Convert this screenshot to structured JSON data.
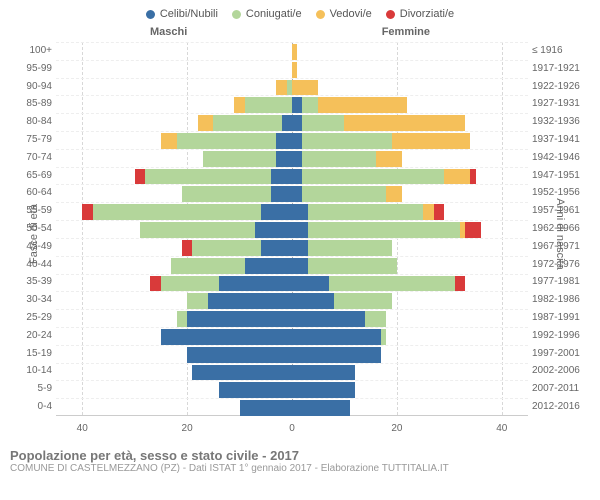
{
  "legend": [
    {
      "label": "Celibi/Nubili",
      "color": "#3a6fa5"
    },
    {
      "label": "Coniugati/e",
      "color": "#b3d69b"
    },
    {
      "label": "Vedovi/e",
      "color": "#f5c05a"
    },
    {
      "label": "Divorziati/e",
      "color": "#d93a3a"
    }
  ],
  "header": {
    "male": "Maschi",
    "female": "Femmine"
  },
  "axis": {
    "left_title": "Fasce di età",
    "right_title": "Anni di nascita",
    "xmax": 45,
    "xticks_left": [
      40,
      20,
      0
    ],
    "xticks_right": [
      0,
      20,
      40
    ]
  },
  "colors": {
    "celibi": "#3a6fa5",
    "coniugati": "#b3d69b",
    "vedovi": "#f5c05a",
    "divorziati": "#d93a3a",
    "grid": "#d8d8d8",
    "center": "#b0b0b0"
  },
  "rows": [
    {
      "age": "100+",
      "birth": "≤ 1916",
      "m": {
        "c": 0,
        "co": 0,
        "v": 0,
        "d": 0
      },
      "f": {
        "c": 0,
        "co": 0,
        "v": 1,
        "d": 0
      }
    },
    {
      "age": "95-99",
      "birth": "1917-1921",
      "m": {
        "c": 0,
        "co": 0,
        "v": 0,
        "d": 0
      },
      "f": {
        "c": 0,
        "co": 0,
        "v": 1,
        "d": 0
      }
    },
    {
      "age": "90-94",
      "birth": "1922-1926",
      "m": {
        "c": 0,
        "co": 1,
        "v": 2,
        "d": 0
      },
      "f": {
        "c": 0,
        "co": 0,
        "v": 5,
        "d": 0
      }
    },
    {
      "age": "85-89",
      "birth": "1927-1931",
      "m": {
        "c": 0,
        "co": 9,
        "v": 2,
        "d": 0
      },
      "f": {
        "c": 2,
        "co": 3,
        "v": 17,
        "d": 0
      }
    },
    {
      "age": "80-84",
      "birth": "1932-1936",
      "m": {
        "c": 2,
        "co": 13,
        "v": 3,
        "d": 0
      },
      "f": {
        "c": 2,
        "co": 8,
        "v": 23,
        "d": 0
      }
    },
    {
      "age": "75-79",
      "birth": "1937-1941",
      "m": {
        "c": 3,
        "co": 19,
        "v": 3,
        "d": 0
      },
      "f": {
        "c": 2,
        "co": 17,
        "v": 15,
        "d": 0
      }
    },
    {
      "age": "70-74",
      "birth": "1942-1946",
      "m": {
        "c": 3,
        "co": 14,
        "v": 0,
        "d": 0
      },
      "f": {
        "c": 2,
        "co": 14,
        "v": 5,
        "d": 0
      }
    },
    {
      "age": "65-69",
      "birth": "1947-1951",
      "m": {
        "c": 4,
        "co": 24,
        "v": 0,
        "d": 2
      },
      "f": {
        "c": 2,
        "co": 27,
        "v": 5,
        "d": 1
      }
    },
    {
      "age": "60-64",
      "birth": "1952-1956",
      "m": {
        "c": 4,
        "co": 17,
        "v": 0,
        "d": 0
      },
      "f": {
        "c": 2,
        "co": 16,
        "v": 3,
        "d": 0
      }
    },
    {
      "age": "55-59",
      "birth": "1957-1961",
      "m": {
        "c": 6,
        "co": 32,
        "v": 0,
        "d": 2
      },
      "f": {
        "c": 3,
        "co": 22,
        "v": 2,
        "d": 2
      }
    },
    {
      "age": "50-54",
      "birth": "1962-1966",
      "m": {
        "c": 7,
        "co": 22,
        "v": 0,
        "d": 0
      },
      "f": {
        "c": 3,
        "co": 29,
        "v": 1,
        "d": 3
      }
    },
    {
      "age": "45-49",
      "birth": "1967-1971",
      "m": {
        "c": 6,
        "co": 13,
        "v": 0,
        "d": 2
      },
      "f": {
        "c": 3,
        "co": 16,
        "v": 0,
        "d": 0
      }
    },
    {
      "age": "40-44",
      "birth": "1972-1976",
      "m": {
        "c": 9,
        "co": 14,
        "v": 0,
        "d": 0
      },
      "f": {
        "c": 3,
        "co": 17,
        "v": 0,
        "d": 0
      }
    },
    {
      "age": "35-39",
      "birth": "1977-1981",
      "m": {
        "c": 14,
        "co": 11,
        "v": 0,
        "d": 2
      },
      "f": {
        "c": 7,
        "co": 24,
        "v": 0,
        "d": 2
      }
    },
    {
      "age": "30-34",
      "birth": "1982-1986",
      "m": {
        "c": 16,
        "co": 4,
        "v": 0,
        "d": 0
      },
      "f": {
        "c": 8,
        "co": 11,
        "v": 0,
        "d": 0
      }
    },
    {
      "age": "25-29",
      "birth": "1987-1991",
      "m": {
        "c": 20,
        "co": 2,
        "v": 0,
        "d": 0
      },
      "f": {
        "c": 14,
        "co": 4,
        "v": 0,
        "d": 0
      }
    },
    {
      "age": "20-24",
      "birth": "1992-1996",
      "m": {
        "c": 25,
        "co": 0,
        "v": 0,
        "d": 0
      },
      "f": {
        "c": 17,
        "co": 1,
        "v": 0,
        "d": 0
      }
    },
    {
      "age": "15-19",
      "birth": "1997-2001",
      "m": {
        "c": 20,
        "co": 0,
        "v": 0,
        "d": 0
      },
      "f": {
        "c": 17,
        "co": 0,
        "v": 0,
        "d": 0
      }
    },
    {
      "age": "10-14",
      "birth": "2002-2006",
      "m": {
        "c": 19,
        "co": 0,
        "v": 0,
        "d": 0
      },
      "f": {
        "c": 12,
        "co": 0,
        "v": 0,
        "d": 0
      }
    },
    {
      "age": "5-9",
      "birth": "2007-2011",
      "m": {
        "c": 14,
        "co": 0,
        "v": 0,
        "d": 0
      },
      "f": {
        "c": 12,
        "co": 0,
        "v": 0,
        "d": 0
      }
    },
    {
      "age": "0-4",
      "birth": "2012-2016",
      "m": {
        "c": 10,
        "co": 0,
        "v": 0,
        "d": 0
      },
      "f": {
        "c": 11,
        "co": 0,
        "v": 0,
        "d": 0
      }
    }
  ],
  "footer": {
    "title": "Popolazione per età, sesso e stato civile - 2017",
    "subtitle": "COMUNE DI CASTELMEZZANO (PZ) - Dati ISTAT 1° gennaio 2017 - Elaborazione TUTTITALIA.IT"
  }
}
